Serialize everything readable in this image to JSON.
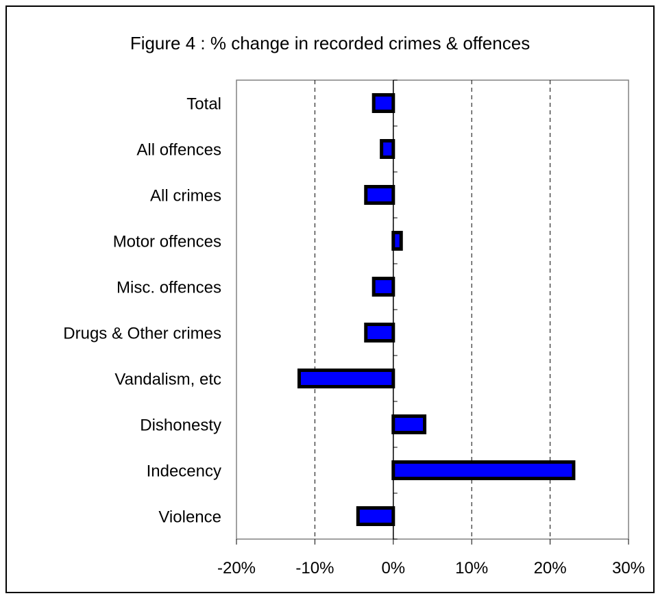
{
  "chart_data": {
    "type": "bar",
    "orientation": "horizontal",
    "title": "Figure 4 : % change in recorded crimes & offences",
    "xlabel": "",
    "ylabel": "",
    "categories": [
      "Total",
      "All offences",
      "All crimes",
      "Motor offences",
      "Misc. offences",
      "Drugs & Other crimes",
      "Vandalism, etc",
      "Dishonesty",
      "Indecency",
      "Violence"
    ],
    "values": [
      -2.5,
      -1.5,
      -3.5,
      1,
      -2.5,
      -3.5,
      -12,
      4,
      23,
      -4.5
    ],
    "xlim": [
      -20,
      30
    ],
    "ticks": [
      -20,
      -10,
      0,
      10,
      20,
      30
    ],
    "tick_labels": [
      "-20%",
      "-10%",
      "0%",
      "10%",
      "20%",
      "30%"
    ],
    "grid": "vertical dashed",
    "legend": "none",
    "bar_color": "#0000ff",
    "bar_border": "#000000"
  }
}
